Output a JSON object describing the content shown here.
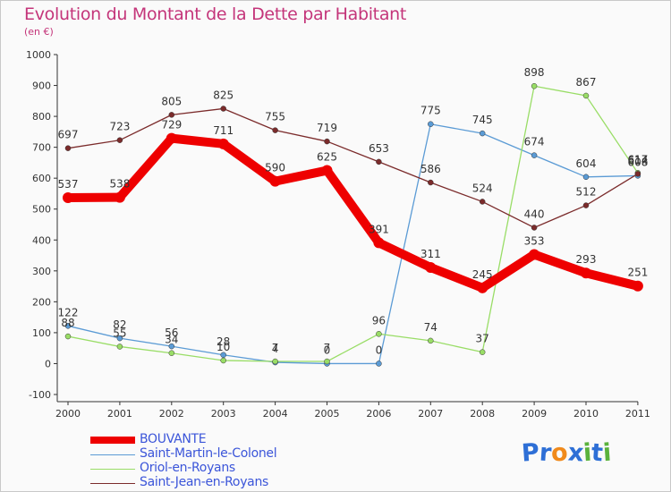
{
  "header": {
    "title": "Evolution du Montant de la Dette par Habitant",
    "unit": "(en €)"
  },
  "logo": {
    "letters": [
      "P",
      "r",
      "o",
      "x",
      "i",
      "t",
      "i"
    ],
    "colors": [
      "#2e6fd6",
      "#2e6fd6",
      "#f08a1c",
      "#2e6fd6",
      "#5ab23c",
      "#2e6fd6",
      "#5ab23c"
    ]
  },
  "chart_data": {
    "type": "line",
    "title": "Evolution du Montant de la Dette par Habitant",
    "subtitle": "(en €)",
    "xlabel": "",
    "ylabel": "",
    "x": [
      "2000",
      "2001",
      "2002",
      "2003",
      "2004",
      "2005",
      "2006",
      "2007",
      "2008",
      "2009",
      "2010",
      "2011"
    ],
    "ylim": [
      -100,
      1000
    ],
    "yticks": [
      "1000",
      "900",
      "800",
      "700",
      "600",
      "500",
      "400",
      "300",
      "200",
      "100",
      "0",
      "-100"
    ],
    "grid": false,
    "legend_placement": "bottom-left",
    "series": [
      {
        "name": "BOUVANTE",
        "color": "#ee0000",
        "values": [
          537,
          538,
          729,
          711,
          590,
          625,
          391,
          311,
          245,
          353,
          293,
          251
        ],
        "labels": [
          "537",
          "538",
          "729",
          "711",
          "590",
          "625",
          "391",
          "311",
          "245",
          "353",
          "293",
          "251"
        ]
      },
      {
        "name": "Saint-Martin-le-Colonel",
        "color": "#5b9bd5",
        "values": [
          122,
          82,
          56,
          28,
          4,
          0,
          0,
          775,
          745,
          674,
          604,
          608
        ],
        "labels": [
          "122",
          "82",
          "56",
          "28",
          "4",
          "0",
          "0",
          "775",
          "745",
          "674",
          "604",
          "608"
        ]
      },
      {
        "name": "Oriol-en-Royans",
        "color": "#99dd66",
        "values": [
          88,
          55,
          34,
          10,
          7,
          7,
          96,
          74,
          37,
          898,
          867,
          617
        ],
        "labels": [
          "88",
          "55",
          "34",
          "10",
          "7",
          "7",
          "96",
          "74",
          "37",
          "898",
          "867",
          "617"
        ]
      },
      {
        "name": "Saint-Jean-en-Royans",
        "color": "#7b2b2b",
        "values": [
          697,
          723,
          805,
          825,
          755,
          719,
          653,
          586,
          524,
          440,
          512,
          614
        ],
        "labels": [
          "697",
          "723",
          "805",
          "825",
          "755",
          "719",
          "653",
          "586",
          "524",
          "440",
          "512",
          "614"
        ]
      }
    ]
  }
}
